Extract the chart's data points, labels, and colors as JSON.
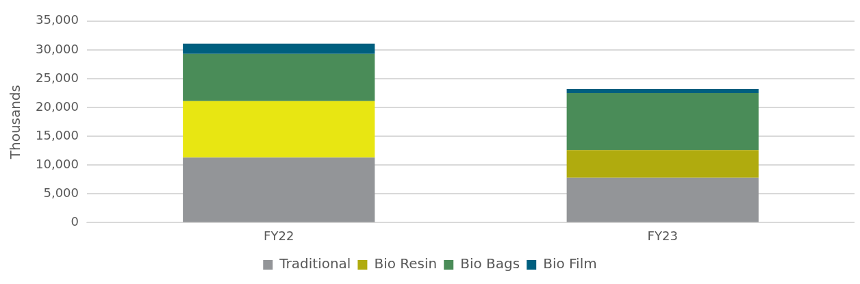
{
  "chart_data": {
    "type": "bar",
    "stacked": true,
    "ylabel": "Thousands",
    "categories": [
      "FY22",
      "FY23"
    ],
    "series": [
      {
        "name": "Traditional",
        "color": "#939598",
        "values": [
          11300,
          7800
        ]
      },
      {
        "name": "Bio Resin",
        "color": "#b0ab0e",
        "colors": [
          "#e8e612",
          "#b0ab0e"
        ],
        "values": [
          9800,
          4800
        ]
      },
      {
        "name": "Bio Bags",
        "color": "#4a8c58",
        "values": [
          8200,
          9900
        ]
      },
      {
        "name": "Bio Film",
        "color": "#005f7f",
        "values": [
          1800,
          700
        ]
      }
    ],
    "ylim": [
      0,
      35000
    ],
    "yticks": [
      0,
      {
        "value": 5000,
        "label": "5,000"
      },
      {
        "value": 10000,
        "label": "10,000"
      },
      {
        "value": 15000,
        "label": "15,000"
      },
      {
        "value": 20000,
        "label": "20,000"
      },
      {
        "value": 25000,
        "label": "25,000"
      },
      {
        "value": 30000,
        "label": "30,000"
      },
      {
        "value": 35000,
        "label": "35,000"
      }
    ],
    "grid": "y",
    "legend": "bottom"
  }
}
